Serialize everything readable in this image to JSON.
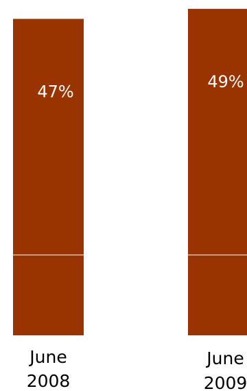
{
  "chart_data": {
    "type": "bar",
    "stacked": true,
    "categories": [
      "June 2008",
      "June 2009"
    ],
    "category_labels": [
      {
        "line1": "June",
        "line2": "2008"
      },
      {
        "line1": "June",
        "line2": "2009"
      }
    ],
    "series": [
      {
        "values": [
          16,
          16
        ]
      },
      {
        "values": [
          47,
          49
        ],
        "data_labels": [
          "47%",
          "49%"
        ]
      }
    ],
    "ylim": [
      0,
      65
    ],
    "colors": {
      "bar": "#993300",
      "segment_divider": "#ffffff",
      "data_label_text": "#ffffff",
      "axis_label_text": "#000000"
    }
  }
}
